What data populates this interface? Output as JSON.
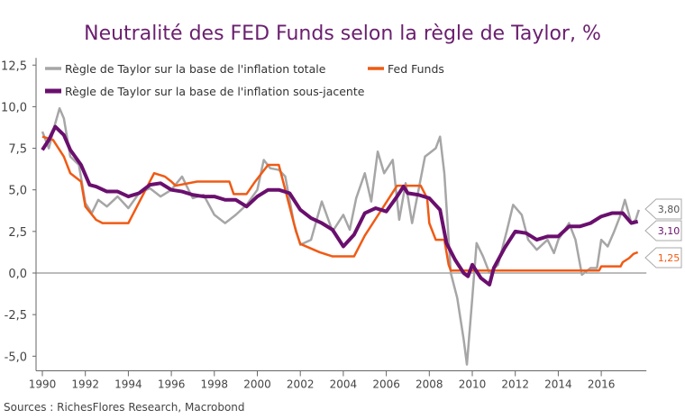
{
  "chart_data": {
    "type": "line",
    "title": "Neutralité des FED Funds selon la règle de Taylor, %",
    "source": "Sources : RichesFlores Research, Macrobond",
    "xlim": [
      1989.8,
      2018.1
    ],
    "ylim": [
      -5.5,
      12.5
    ],
    "x_ticks": [
      1990,
      1992,
      1994,
      1996,
      1998,
      2000,
      2002,
      2004,
      2006,
      2008,
      2010,
      2012,
      2014,
      2016
    ],
    "y_ticks": [
      {
        "v": 12.5,
        "label": "12,5"
      },
      {
        "v": 10,
        "label": "10,0"
      },
      {
        "v": 7.5,
        "label": "7,5"
      },
      {
        "v": 5,
        "label": "5,0"
      },
      {
        "v": 2.5,
        "label": "2,5"
      },
      {
        "v": 0,
        "label": "0,0"
      },
      {
        "v": -2.5,
        "label": "-2,5"
      },
      {
        "v": -5,
        "label": "-5,0"
      }
    ],
    "grid": false,
    "legend_placement": "top-left",
    "series": [
      {
        "name": "Règle de Taylor sur la base de l'inflation totale",
        "color": "#a6a6a6",
        "end_label": "3,80",
        "points": [
          [
            1990,
            8.5
          ],
          [
            1990.3,
            7.5
          ],
          [
            1990.6,
            9.0
          ],
          [
            1990.8,
            9.9
          ],
          [
            1991,
            9.3
          ],
          [
            1991.3,
            7.0
          ],
          [
            1991.7,
            6.5
          ],
          [
            1992,
            4.2
          ],
          [
            1992.3,
            3.6
          ],
          [
            1992.6,
            4.4
          ],
          [
            1993,
            4.0
          ],
          [
            1993.5,
            4.6
          ],
          [
            1994,
            3.9
          ],
          [
            1994.5,
            4.8
          ],
          [
            1995,
            5.1
          ],
          [
            1995.5,
            4.6
          ],
          [
            1996,
            5.0
          ],
          [
            1996.5,
            5.8
          ],
          [
            1996.8,
            5.0
          ],
          [
            1997,
            4.5
          ],
          [
            1997.5,
            4.7
          ],
          [
            1998,
            3.5
          ],
          [
            1998.5,
            3.0
          ],
          [
            1999,
            3.5
          ],
          [
            1999.5,
            4.1
          ],
          [
            2000,
            5.0
          ],
          [
            2000.3,
            6.8
          ],
          [
            2000.6,
            6.3
          ],
          [
            2001,
            6.2
          ],
          [
            2001.3,
            5.8
          ],
          [
            2001.7,
            3.0
          ],
          [
            2002,
            1.7
          ],
          [
            2002.5,
            2.0
          ],
          [
            2003,
            4.3
          ],
          [
            2003.5,
            2.5
          ],
          [
            2004,
            3.5
          ],
          [
            2004.3,
            2.6
          ],
          [
            2004.6,
            4.5
          ],
          [
            2005,
            6.0
          ],
          [
            2005.3,
            4.3
          ],
          [
            2005.6,
            7.3
          ],
          [
            2005.9,
            6.0
          ],
          [
            2006.3,
            6.8
          ],
          [
            2006.6,
            3.2
          ],
          [
            2006.9,
            5.4
          ],
          [
            2007.2,
            3.0
          ],
          [
            2007.5,
            5.0
          ],
          [
            2007.8,
            7.0
          ],
          [
            2008,
            7.2
          ],
          [
            2008.3,
            7.5
          ],
          [
            2008.5,
            8.2
          ],
          [
            2008.7,
            6.0
          ],
          [
            2009,
            0.0
          ],
          [
            2009.3,
            -1.5
          ],
          [
            2009.6,
            -4.0
          ],
          [
            2009.75,
            -5.5
          ],
          [
            2010,
            -1.5
          ],
          [
            2010.2,
            1.8
          ],
          [
            2010.5,
            1.0
          ],
          [
            2010.8,
            0.0
          ],
          [
            2011.2,
            0.5
          ],
          [
            2011.6,
            2.5
          ],
          [
            2011.9,
            4.1
          ],
          [
            2012.3,
            3.5
          ],
          [
            2012.6,
            2.0
          ],
          [
            2013,
            1.4
          ],
          [
            2013.5,
            2.0
          ],
          [
            2013.8,
            1.2
          ],
          [
            2014,
            2.0
          ],
          [
            2014.5,
            3.0
          ],
          [
            2014.8,
            2.0
          ],
          [
            2015.1,
            -0.1
          ],
          [
            2015.5,
            0.3
          ],
          [
            2015.8,
            0.3
          ],
          [
            2016,
            2.0
          ],
          [
            2016.3,
            1.6
          ],
          [
            2016.6,
            2.5
          ],
          [
            2016.9,
            3.5
          ],
          [
            2017.1,
            4.4
          ],
          [
            2017.4,
            3.0
          ],
          [
            2017.6,
            3.2
          ],
          [
            2017.75,
            3.8
          ]
        ]
      },
      {
        "name": "Fed Funds",
        "color": "#f05a14",
        "end_label": "1,25",
        "points": [
          [
            1990,
            8.2
          ],
          [
            1990.5,
            8.0
          ],
          [
            1991,
            7.0
          ],
          [
            1991.3,
            6.0
          ],
          [
            1991.8,
            5.5
          ],
          [
            1992,
            4.0
          ],
          [
            1992.5,
            3.2
          ],
          [
            1992.8,
            3.0
          ],
          [
            1994,
            3.0
          ],
          [
            1994.2,
            3.5
          ],
          [
            1994.6,
            4.5
          ],
          [
            1995,
            5.5
          ],
          [
            1995.2,
            6.0
          ],
          [
            1995.7,
            5.8
          ],
          [
            1996,
            5.5
          ],
          [
            1996.2,
            5.25
          ],
          [
            1997.2,
            5.5
          ],
          [
            1998.7,
            5.5
          ],
          [
            1998.9,
            4.75
          ],
          [
            1999.5,
            4.75
          ],
          [
            1999.9,
            5.5
          ],
          [
            2000.5,
            6.5
          ],
          [
            2001,
            6.5
          ],
          [
            2001.3,
            5.0
          ],
          [
            2001.8,
            2.5
          ],
          [
            2002,
            1.75
          ],
          [
            2002.9,
            1.25
          ],
          [
            2003.5,
            1.0
          ],
          [
            2004.5,
            1.0
          ],
          [
            2005,
            2.25
          ],
          [
            2005.5,
            3.25
          ],
          [
            2006,
            4.25
          ],
          [
            2006.5,
            5.25
          ],
          [
            2007.6,
            5.25
          ],
          [
            2007.9,
            4.5
          ],
          [
            2008,
            3.0
          ],
          [
            2008.3,
            2.0
          ],
          [
            2008.7,
            2.0
          ],
          [
            2008.9,
            0.5
          ],
          [
            2009,
            0.15
          ],
          [
            2015.9,
            0.15
          ],
          [
            2016,
            0.4
          ],
          [
            2016.9,
            0.4
          ],
          [
            2017,
            0.65
          ],
          [
            2017.3,
            0.9
          ],
          [
            2017.5,
            1.15
          ],
          [
            2017.7,
            1.25
          ]
        ]
      },
      {
        "name": "Règle de Taylor sur la base de l'inflation sous-jacente",
        "color": "#6a0f6e",
        "end_label": "3,10",
        "points": [
          [
            1990,
            7.4
          ],
          [
            1990.3,
            8.0
          ],
          [
            1990.6,
            8.8
          ],
          [
            1991,
            8.3
          ],
          [
            1991.3,
            7.4
          ],
          [
            1991.8,
            6.5
          ],
          [
            1992.2,
            5.3
          ],
          [
            1992.5,
            5.2
          ],
          [
            1993,
            4.9
          ],
          [
            1993.5,
            4.9
          ],
          [
            1994,
            4.6
          ],
          [
            1994.5,
            4.8
          ],
          [
            1995,
            5.3
          ],
          [
            1995.5,
            5.4
          ],
          [
            1996,
            5.0
          ],
          [
            1996.5,
            4.9
          ],
          [
            1997,
            4.7
          ],
          [
            1997.5,
            4.6
          ],
          [
            1998,
            4.6
          ],
          [
            1998.5,
            4.4
          ],
          [
            1999,
            4.4
          ],
          [
            1999.5,
            4.0
          ],
          [
            2000,
            4.6
          ],
          [
            2000.5,
            5.0
          ],
          [
            2001,
            5.0
          ],
          [
            2001.5,
            4.8
          ],
          [
            2002,
            3.8
          ],
          [
            2002.5,
            3.3
          ],
          [
            2003,
            3.0
          ],
          [
            2003.5,
            2.6
          ],
          [
            2004,
            1.6
          ],
          [
            2004.5,
            2.3
          ],
          [
            2005,
            3.6
          ],
          [
            2005.5,
            3.9
          ],
          [
            2006,
            3.7
          ],
          [
            2006.5,
            4.6
          ],
          [
            2006.8,
            5.2
          ],
          [
            2007,
            4.8
          ],
          [
            2007.5,
            4.7
          ],
          [
            2008,
            4.5
          ],
          [
            2008.5,
            3.8
          ],
          [
            2008.8,
            1.8
          ],
          [
            2009.2,
            0.8
          ],
          [
            2009.6,
            0.0
          ],
          [
            2009.8,
            -0.2
          ],
          [
            2010,
            0.5
          ],
          [
            2010.4,
            -0.3
          ],
          [
            2010.8,
            -0.7
          ],
          [
            2011,
            0.3
          ],
          [
            2011.5,
            1.5
          ],
          [
            2012,
            2.5
          ],
          [
            2012.5,
            2.4
          ],
          [
            2013,
            2.0
          ],
          [
            2013.5,
            2.2
          ],
          [
            2014,
            2.2
          ],
          [
            2014.5,
            2.8
          ],
          [
            2015,
            2.8
          ],
          [
            2015.5,
            3.0
          ],
          [
            2016,
            3.4
          ],
          [
            2016.5,
            3.6
          ],
          [
            2017,
            3.6
          ],
          [
            2017.4,
            3.0
          ],
          [
            2017.7,
            3.1
          ]
        ]
      }
    ]
  }
}
